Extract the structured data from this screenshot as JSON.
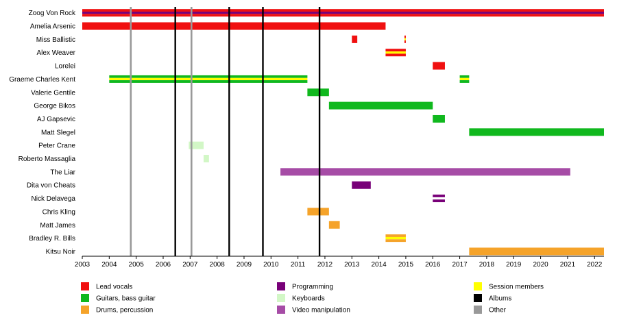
{
  "chart_data": {
    "type": "timeline",
    "title": "",
    "xlim": [
      2003,
      2022.35
    ],
    "x_ticks": [
      "2003",
      "2004",
      "2005",
      "2006",
      "2007",
      "2008",
      "2009",
      "2010",
      "2011",
      "2012",
      "2013",
      "2014",
      "2015",
      "2016",
      "2017",
      "2018",
      "2019",
      "2020",
      "2021",
      "2022"
    ],
    "members": [
      "Zoog Von Rock",
      "Amelia Arsenic",
      "Miss Ballistic",
      "Alex Weaver",
      "Lorelei",
      "Graeme Charles Kent",
      "Valerie Gentile",
      "George Bikos",
      "AJ Gapsevic",
      "Matt Slegel",
      "Peter Crane",
      "Roberto Massaglia",
      "The Liar",
      "Dita von Cheats",
      "Nick Delavega",
      "Chris Kling",
      "Matt James",
      "Bradley R. Bills",
      "Kitsu Noir"
    ],
    "roles": {
      "vocals": "#f01010",
      "guitar": "#10b81e",
      "drums": "#f5a32a",
      "programming": "#780078",
      "keyboards": "#d2f7c6",
      "video": "#a64ca6",
      "session": "#ffff00",
      "albums": "#000000",
      "other": "#999999"
    },
    "bars": [
      {
        "member": 0,
        "start": 2003.0,
        "end": 2022.35,
        "roles": [
          "vocals",
          "programming",
          "vocals"
        ]
      },
      {
        "member": 1,
        "start": 2003.0,
        "end": 2014.25,
        "roles": [
          "vocals"
        ]
      },
      {
        "member": 2,
        "start": 2013.0,
        "end": 2013.2,
        "roles": [
          "vocals"
        ]
      },
      {
        "member": 2,
        "start": 2014.95,
        "end": 2015.0,
        "roles": [
          "vocals",
          "session",
          "vocals"
        ]
      },
      {
        "member": 3,
        "start": 2014.25,
        "end": 2015.0,
        "roles": [
          "vocals",
          "session",
          "vocals"
        ]
      },
      {
        "member": 4,
        "start": 2016.0,
        "end": 2016.45,
        "roles": [
          "vocals"
        ]
      },
      {
        "member": 5,
        "start": 2004.0,
        "end": 2011.35,
        "roles": [
          "guitar",
          "session",
          "guitar"
        ]
      },
      {
        "member": 5,
        "start": 2017.0,
        "end": 2017.35,
        "roles": [
          "guitar",
          "session",
          "guitar"
        ]
      },
      {
        "member": 6,
        "start": 2011.35,
        "end": 2012.15,
        "roles": [
          "guitar"
        ]
      },
      {
        "member": 7,
        "start": 2012.15,
        "end": 2016.0,
        "roles": [
          "guitar"
        ]
      },
      {
        "member": 8,
        "start": 2016.0,
        "end": 2016.45,
        "roles": [
          "guitar"
        ]
      },
      {
        "member": 9,
        "start": 2017.35,
        "end": 2022.35,
        "roles": [
          "guitar"
        ]
      },
      {
        "member": 10,
        "start": 2006.95,
        "end": 2007.5,
        "roles": [
          "keyboards"
        ]
      },
      {
        "member": 11,
        "start": 2007.5,
        "end": 2007.7,
        "roles": [
          "keyboards"
        ]
      },
      {
        "member": 12,
        "start": 2010.35,
        "end": 2021.1,
        "roles": [
          "video"
        ]
      },
      {
        "member": 13,
        "start": 2013.0,
        "end": 2013.7,
        "roles": [
          "programming"
        ]
      },
      {
        "member": 14,
        "start": 2016.0,
        "end": 2016.45,
        "roles": [
          "programming",
          "white",
          "programming"
        ]
      },
      {
        "member": 15,
        "start": 2011.35,
        "end": 2012.15,
        "roles": [
          "drums"
        ]
      },
      {
        "member": 16,
        "start": 2012.15,
        "end": 2012.55,
        "roles": [
          "drums"
        ]
      },
      {
        "member": 17,
        "start": 2014.25,
        "end": 2015.0,
        "roles": [
          "drums",
          "session",
          "drums"
        ]
      },
      {
        "member": 18,
        "start": 2017.35,
        "end": 2022.35,
        "roles": [
          "drums"
        ]
      }
    ],
    "vlines": [
      {
        "x": 2004.8,
        "type": "other"
      },
      {
        "x": 2006.45,
        "type": "albums"
      },
      {
        "x": 2007.05,
        "type": "other"
      },
      {
        "x": 2008.45,
        "type": "albums"
      },
      {
        "x": 2009.7,
        "type": "albums"
      },
      {
        "x": 2011.8,
        "type": "albums"
      }
    ],
    "legend": {
      "placement": "bottom",
      "columns": [
        [
          {
            "label": "Lead vocals",
            "role": "vocals"
          },
          {
            "label": "Guitars, bass guitar",
            "role": "guitar"
          },
          {
            "label": "Drums, percussion",
            "role": "drums"
          }
        ],
        [
          {
            "label": "Programming",
            "role": "programming"
          },
          {
            "label": "Keyboards",
            "role": "keyboards"
          },
          {
            "label": "Video manipulation",
            "role": "video"
          }
        ],
        [
          {
            "label": "Session members",
            "role": "session"
          },
          {
            "label": "Albums",
            "role": "albums"
          },
          {
            "label": "Other",
            "role": "other"
          }
        ]
      ]
    }
  }
}
